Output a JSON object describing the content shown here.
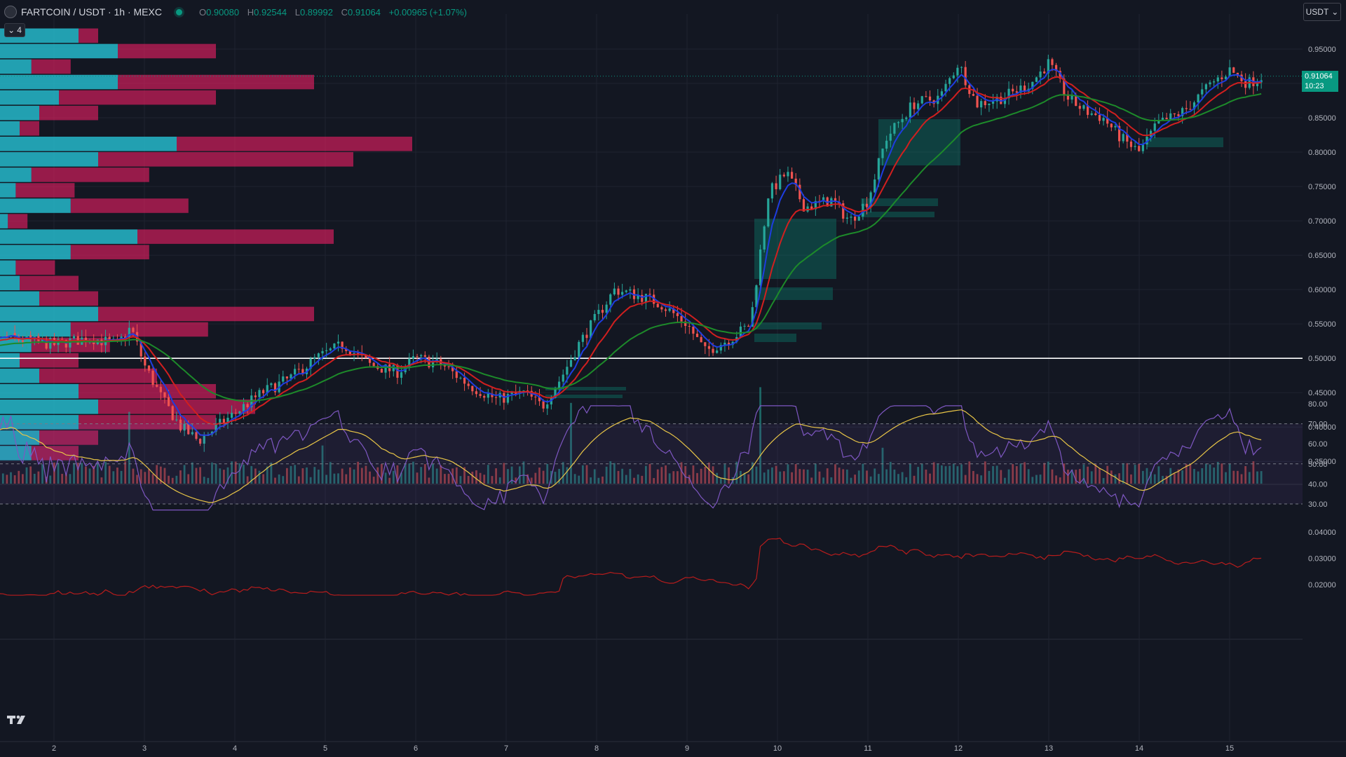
{
  "header": {
    "symbol": "FARTCOIN / USDT · 1h · MEXC",
    "open_key": "O",
    "open": "0.90080",
    "high_key": "H",
    "high": "0.92544",
    "low_key": "L",
    "low": "0.89992",
    "close_key": "C",
    "close": "0.91064",
    "change": "+0.00965 (+1.07%)"
  },
  "collapse_count": "4",
  "currency": "USDT",
  "last_price": "0.91064",
  "countdown": "10:23",
  "price_axis": [
    "0.95000",
    "0.90000",
    "0.85000",
    "0.80000",
    "0.75000",
    "0.70000",
    "0.65000",
    "0.60000",
    "0.55000",
    "0.50000",
    "0.45000",
    "0.40000",
    "0.35000"
  ],
  "rsi_axis": [
    "80.00",
    "70.00",
    "60.00",
    "50.00",
    "40.00",
    "30.00"
  ],
  "atr_axis": [
    "0.04000",
    "0.03000",
    "0.02000"
  ],
  "time_axis": [
    "2",
    "3",
    "4",
    "5",
    "6",
    "7",
    "8",
    "9",
    "10",
    "11",
    "12",
    "13",
    "14",
    "15"
  ],
  "horizontal_line": 0.5,
  "colors": {
    "bg": "#131722",
    "up": "#26a69a",
    "down": "#ef5350",
    "ema_fast": "#1e3de0",
    "ema_mid": "#d11f1f",
    "ema_slow": "#1d8a2a",
    "rsi": "#7e57c2",
    "rsi_ma": "#e8c547",
    "atr": "#b71c1c",
    "accent": "#089981"
  },
  "chart_data": {
    "type": "line",
    "price_path": [
      [
        1.0,
        0.52
      ],
      [
        1.5,
        0.53
      ],
      [
        2.0,
        0.52
      ],
      [
        2.4,
        0.53
      ],
      [
        2.7,
        0.52
      ],
      [
        2.85,
        0.545
      ],
      [
        3.0,
        0.49
      ],
      [
        3.2,
        0.44
      ],
      [
        3.4,
        0.4
      ],
      [
        3.6,
        0.38
      ],
      [
        3.8,
        0.4
      ],
      [
        4.0,
        0.42
      ],
      [
        4.3,
        0.45
      ],
      [
        4.6,
        0.47
      ],
      [
        4.9,
        0.5
      ],
      [
        5.2,
        0.52
      ],
      [
        5.5,
        0.49
      ],
      [
        5.8,
        0.48
      ],
      [
        6.0,
        0.5
      ],
      [
        6.3,
        0.49
      ],
      [
        6.6,
        0.46
      ],
      [
        6.9,
        0.44
      ],
      [
        7.2,
        0.45
      ],
      [
        7.4,
        0.43
      ],
      [
        7.6,
        0.47
      ],
      [
        7.8,
        0.52
      ],
      [
        8.0,
        0.56
      ],
      [
        8.2,
        0.6
      ],
      [
        8.5,
        0.59
      ],
      [
        8.7,
        0.58
      ],
      [
        9.0,
        0.55
      ],
      [
        9.2,
        0.51
      ],
      [
        9.5,
        0.53
      ],
      [
        9.7,
        0.55
      ],
      [
        9.9,
        0.74
      ],
      [
        10.1,
        0.77
      ],
      [
        10.3,
        0.72
      ],
      [
        10.6,
        0.73
      ],
      [
        10.8,
        0.7
      ],
      [
        11.0,
        0.73
      ],
      [
        11.2,
        0.82
      ],
      [
        11.5,
        0.87
      ],
      [
        11.8,
        0.88
      ],
      [
        12.0,
        0.93
      ],
      [
        12.2,
        0.87
      ],
      [
        12.5,
        0.88
      ],
      [
        12.8,
        0.9
      ],
      [
        13.0,
        0.93
      ],
      [
        13.2,
        0.88
      ],
      [
        13.4,
        0.86
      ],
      [
        13.6,
        0.85
      ],
      [
        13.8,
        0.82
      ],
      [
        14.0,
        0.8
      ],
      [
        14.2,
        0.84
      ],
      [
        14.5,
        0.86
      ],
      [
        14.8,
        0.9
      ],
      [
        15.0,
        0.92
      ],
      [
        15.2,
        0.9
      ],
      [
        15.35,
        0.91
      ]
    ],
    "volume_profile_levels_min": 0.35,
    "volume_profile_levels_max": 0.98,
    "volume_profile": [
      [
        0.2,
        0.05
      ],
      [
        0.3,
        0.25
      ],
      [
        0.08,
        0.1
      ],
      [
        0.3,
        0.5
      ],
      [
        0.15,
        0.4
      ],
      [
        0.1,
        0.15
      ],
      [
        0.05,
        0.05
      ],
      [
        0.45,
        0.6
      ],
      [
        0.25,
        0.65
      ],
      [
        0.08,
        0.3
      ],
      [
        0.04,
        0.15
      ],
      [
        0.18,
        0.3
      ],
      [
        0.02,
        0.05
      ],
      [
        0.35,
        0.5
      ],
      [
        0.18,
        0.2
      ],
      [
        0.04,
        0.1
      ],
      [
        0.05,
        0.15
      ],
      [
        0.1,
        0.15
      ],
      [
        0.25,
        0.55
      ],
      [
        0.18,
        0.35
      ],
      [
        0.08,
        0.2
      ],
      [
        0.05,
        0.15
      ],
      [
        0.1,
        0.3
      ],
      [
        0.2,
        0.35
      ],
      [
        0.25,
        0.4
      ],
      [
        0.2,
        0.35
      ],
      [
        0.1,
        0.15
      ],
      [
        0.08,
        0.12
      ]
    ]
  }
}
